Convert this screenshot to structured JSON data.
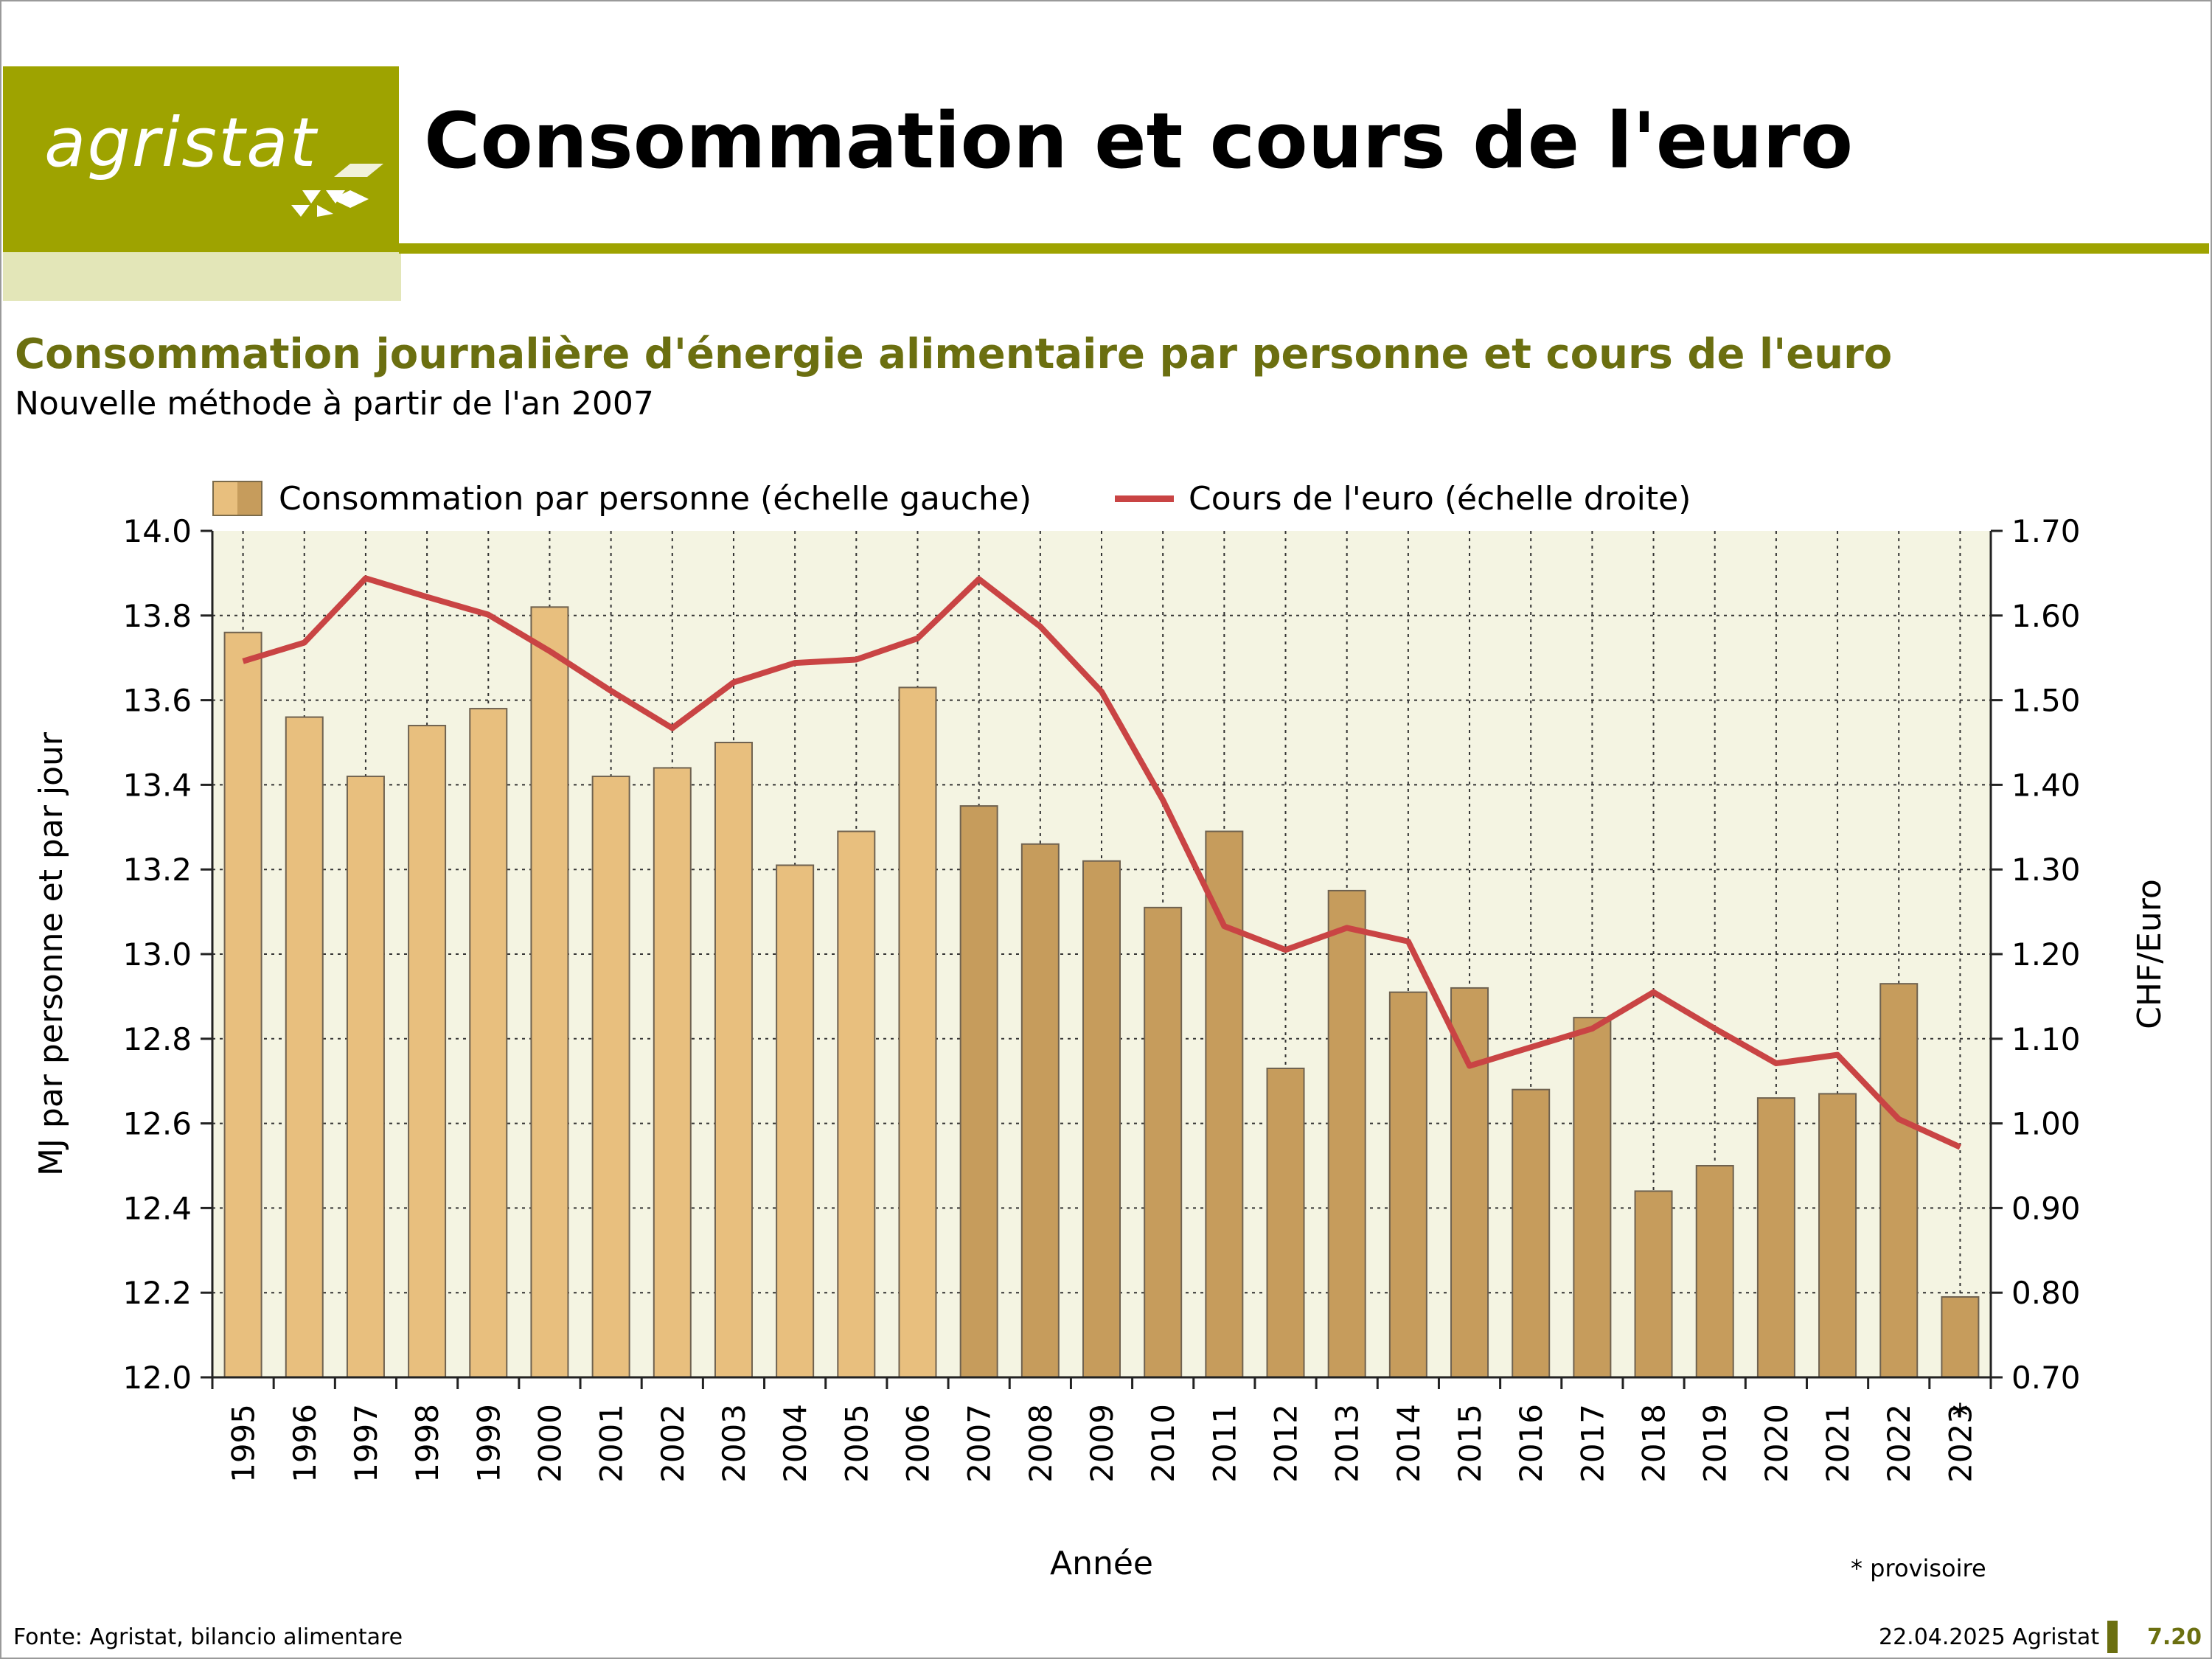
{
  "header": {
    "logo_text": "agristat",
    "title": "Consommation et cours de l'euro"
  },
  "chart_title": "Consommation journalière d'énergie alimentaire par personne et cours de l'euro",
  "chart_subtitle": "Nouvelle méthode à partir de l'an 2007",
  "colors": {
    "brand": "#9ea300",
    "brand_light": "#e3e6b8",
    "title_olive": "#6b6f10",
    "plot_bg": "#f4f4e2",
    "bar_light": "#e8bf7e",
    "bar_dark": "#c69c5c",
    "line": "#c94444"
  },
  "chart_data": {
    "type": "bar",
    "categories": [
      "1995",
      "1996",
      "1997",
      "1998",
      "1999",
      "2000",
      "2001",
      "2002",
      "2003",
      "2004",
      "2005",
      "2006",
      "2007",
      "2008",
      "2009",
      "2010",
      "2011",
      "2012",
      "2013",
      "2014",
      "2015",
      "2016",
      "2017",
      "2018",
      "2019",
      "2020",
      "2021",
      "2022",
      "2023"
    ],
    "xlabel": "Année",
    "ylabel": "MJ par personne et par jour",
    "y2label": "CHF/Euro",
    "ylim": [
      12.0,
      14.0
    ],
    "y2lim": [
      0.7,
      1.7
    ],
    "yticks": [
      "14.0",
      "13.8",
      "13.6",
      "13.4",
      "13.2",
      "13.0",
      "12.8",
      "12.6",
      "12.4",
      "12.2",
      "12.0"
    ],
    "y2ticks": [
      "1.70",
      "1.60",
      "1.50",
      "1.40",
      "1.30",
      "1.20",
      "1.10",
      "1.00",
      "0.90",
      "0.80",
      "0.70"
    ],
    "grid": true,
    "legend_position": "top",
    "series": [
      {
        "name": "Consommation par personne (échelle gauche)",
        "type": "bar",
        "axis": "left",
        "values": [
          13.76,
          13.56,
          13.42,
          13.54,
          13.58,
          13.82,
          13.42,
          13.44,
          13.5,
          13.21,
          13.29,
          13.63,
          13.35,
          13.26,
          13.22,
          13.11,
          13.29,
          12.73,
          13.15,
          12.91,
          12.92,
          12.68,
          12.85,
          12.44,
          12.5,
          12.66,
          12.67,
          12.93,
          12.19
        ],
        "method_note": "Nouvelle méthode à partir de l'an 2007"
      },
      {
        "name": "Cours de l'euro (échelle droite)",
        "type": "line",
        "axis": "right",
        "values": [
          1.546,
          1.568,
          1.644,
          1.622,
          1.601,
          1.558,
          1.511,
          1.467,
          1.521,
          1.544,
          1.548,
          1.573,
          1.643,
          1.587,
          1.51,
          1.382,
          1.233,
          1.205,
          1.231,
          1.215,
          1.068,
          1.09,
          1.112,
          1.155,
          1.112,
          1.071,
          1.081,
          1.005,
          0.972
        ]
      }
    ],
    "annotations": {
      "provisional_marker": "*",
      "provisional_note": "* provisoire"
    }
  },
  "footer": {
    "source": "Fonte: Agristat, bilancio alimentare",
    "date": "22.04.2025 Agristat",
    "page": "7.20"
  }
}
